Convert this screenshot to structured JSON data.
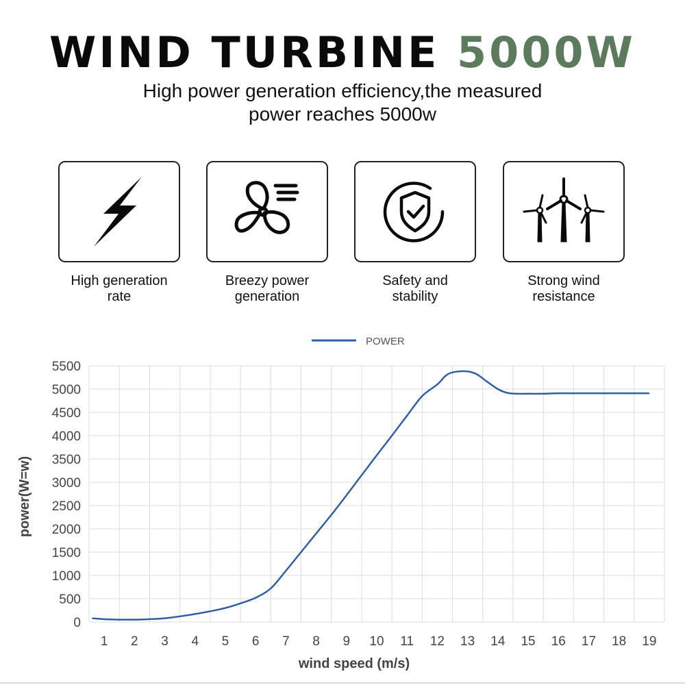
{
  "header": {
    "title_main": "WIND TURBINE",
    "title_accent": "5000W",
    "subtitle_line1": "High power generation efficiency,the measured",
    "subtitle_line2": "power reaches 5000w",
    "accent_color": "#5c7a5c"
  },
  "features": [
    {
      "label_line1": "High generation",
      "label_line2": "rate",
      "icon": "lightning-bolt-icon"
    },
    {
      "label_line1": "Breezy power",
      "label_line2": "generation",
      "icon": "fan-breeze-icon"
    },
    {
      "label_line1": "Safety and",
      "label_line2": "stability",
      "icon": "shield-check-icon"
    },
    {
      "label_line1": "Strong wind",
      "label_line2": "resistance",
      "icon": "wind-turbines-icon"
    }
  ],
  "chart_data": {
    "type": "line",
    "title": "",
    "xlabel": "wind speed (m/s)",
    "ylabel": "power(W=w)",
    "categories": [
      "1",
      "2",
      "3",
      "4",
      "5",
      "6",
      "7",
      "8",
      "9",
      "10",
      "11",
      "12",
      "13",
      "14",
      "15",
      "16",
      "17",
      "18",
      "19"
    ],
    "ylim": [
      0,
      5500
    ],
    "yticks": [
      "0",
      "500",
      "1000",
      "1500",
      "2000",
      "2500",
      "3000",
      "3500",
      "4000",
      "4500",
      "5000",
      "5500"
    ],
    "grid": true,
    "legend": "top-center",
    "series": [
      {
        "name": "POWER",
        "color": "#2e5fa3",
        "x": [
          0.6,
          1.0,
          1.5,
          2.0,
          2.5,
          3.0,
          3.5,
          4.0,
          4.5,
          5.0,
          5.5,
          6.0,
          6.5,
          7.0,
          7.5,
          8.0,
          8.5,
          9.0,
          9.5,
          10.0,
          10.5,
          11.0,
          11.5,
          12.0,
          12.3,
          12.6,
          13.0,
          13.3,
          13.6,
          14.0,
          14.3,
          14.6,
          15.0,
          15.5,
          16.0,
          17.0,
          18.0,
          19.0
        ],
        "values": [
          80,
          60,
          50,
          50,
          60,
          80,
          120,
          170,
          230,
          300,
          400,
          520,
          720,
          1100,
          1500,
          1900,
          2300,
          2720,
          3150,
          3580,
          4000,
          4430,
          4850,
          5100,
          5300,
          5370,
          5380,
          5320,
          5180,
          5000,
          4920,
          4900,
          4900,
          4900,
          4910,
          4910,
          4910,
          4910
        ]
      }
    ]
  }
}
